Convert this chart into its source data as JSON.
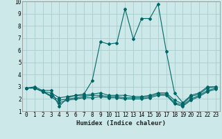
{
  "xlabel": "Humidex (Indice chaleur)",
  "xlim": [
    -0.5,
    23.5
  ],
  "ylim": [
    1,
    10
  ],
  "xticks": [
    0,
    1,
    2,
    3,
    4,
    5,
    6,
    7,
    8,
    9,
    10,
    11,
    12,
    13,
    14,
    15,
    16,
    17,
    18,
    19,
    20,
    21,
    22,
    23
  ],
  "yticks": [
    1,
    2,
    3,
    4,
    5,
    6,
    7,
    8,
    9,
    10
  ],
  "bg_color": "#cce8e8",
  "grid_color": "#aacccc",
  "line_color": "#006666",
  "series": [
    {
      "x": [
        0,
        1,
        2,
        3,
        4,
        5,
        6,
        7,
        8,
        9,
        10,
        11,
        12,
        13,
        14,
        15,
        16,
        17,
        18,
        19,
        20,
        21,
        22,
        23
      ],
      "y": [
        2.9,
        3.0,
        2.7,
        2.7,
        1.4,
        2.1,
        2.3,
        2.4,
        3.5,
        6.7,
        6.5,
        6.6,
        9.4,
        6.9,
        8.6,
        8.6,
        9.8,
        5.9,
        2.5,
        1.7,
        2.3,
        2.5,
        3.0,
        3.0
      ]
    },
    {
      "x": [
        0,
        1,
        2,
        3,
        4,
        5,
        6,
        7,
        8,
        9,
        10,
        11,
        12,
        13,
        14,
        15,
        16,
        17,
        18,
        19,
        20,
        21,
        22,
        23
      ],
      "y": [
        2.9,
        2.9,
        2.6,
        2.5,
        2.1,
        2.2,
        2.3,
        2.3,
        2.4,
        2.5,
        2.3,
        2.3,
        2.3,
        2.2,
        2.2,
        2.3,
        2.5,
        2.5,
        1.9,
        1.6,
        2.2,
        2.4,
        2.9,
        3.0
      ]
    },
    {
      "x": [
        0,
        1,
        2,
        3,
        4,
        5,
        6,
        7,
        8,
        9,
        10,
        11,
        12,
        13,
        14,
        15,
        16,
        17,
        18,
        19,
        20,
        21,
        22,
        23
      ],
      "y": [
        2.9,
        2.9,
        2.6,
        2.3,
        1.9,
        2.0,
        2.1,
        2.2,
        2.3,
        2.3,
        2.2,
        2.2,
        2.1,
        2.1,
        2.1,
        2.2,
        2.4,
        2.4,
        1.7,
        1.5,
        2.0,
        2.3,
        2.7,
        2.9
      ]
    },
    {
      "x": [
        0,
        1,
        2,
        3,
        4,
        5,
        6,
        7,
        8,
        9,
        10,
        11,
        12,
        13,
        14,
        15,
        16,
        17,
        18,
        19,
        20,
        21,
        22,
        23
      ],
      "y": [
        2.9,
        2.9,
        2.6,
        2.2,
        1.7,
        1.9,
        2.0,
        2.1,
        2.1,
        2.2,
        2.1,
        2.1,
        2.0,
        2.0,
        2.0,
        2.1,
        2.3,
        2.3,
        1.6,
        1.4,
        1.9,
        2.2,
        2.6,
        2.8
      ]
    }
  ]
}
